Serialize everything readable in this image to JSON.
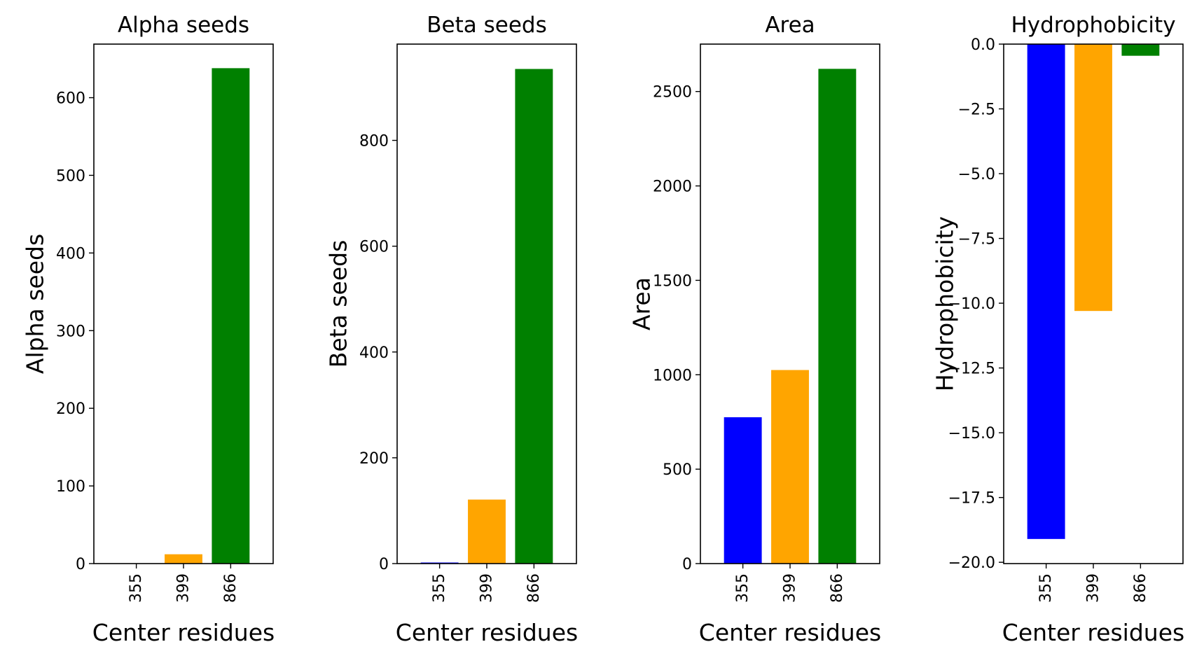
{
  "chart_data": [
    {
      "type": "bar",
      "title": "Alpha seeds",
      "xlabel": "Center residues",
      "ylabel": "Alpha seeds",
      "categories": [
        "355",
        "399",
        "866"
      ],
      "values": [
        0,
        12,
        638
      ],
      "colors": [
        "#0000ff",
        "#ffa500",
        "#008000"
      ],
      "ylim": [
        0,
        669
      ],
      "yticks": [
        0,
        100,
        200,
        300,
        400,
        500,
        600
      ],
      "ytick_labels": [
        "0",
        "100",
        "200",
        "300",
        "400",
        "500",
        "600"
      ],
      "grid": false
    },
    {
      "type": "bar",
      "title": "Beta seeds",
      "xlabel": "Center residues",
      "ylabel": "Beta seeds",
      "categories": [
        "355",
        "399",
        "866"
      ],
      "values": [
        2,
        121,
        935
      ],
      "colors": [
        "#0000ff",
        "#ffa500",
        "#008000"
      ],
      "ylim": [
        0,
        982
      ],
      "yticks": [
        0,
        200,
        400,
        600,
        800
      ],
      "ytick_labels": [
        "0",
        "200",
        "400",
        "600",
        "800"
      ],
      "grid": false
    },
    {
      "type": "bar",
      "title": "Area",
      "xlabel": "Center residues",
      "ylabel": "Area",
      "categories": [
        "355",
        "399",
        "866"
      ],
      "values": [
        775,
        1025,
        2620
      ],
      "colors": [
        "#0000ff",
        "#ffa500",
        "#008000"
      ],
      "ylim": [
        0,
        2751
      ],
      "yticks": [
        0,
        500,
        1000,
        1500,
        2000,
        2500
      ],
      "ytick_labels": [
        "0",
        "500",
        "1000",
        "1500",
        "2000",
        "2500"
      ],
      "grid": false
    },
    {
      "type": "bar",
      "title": "Hydrophobicity",
      "xlabel": "Center residues",
      "ylabel": "Hydrophobicity",
      "categories": [
        "355",
        "399",
        "866"
      ],
      "values": [
        -19.1,
        -10.3,
        -0.45
      ],
      "colors": [
        "#0000ff",
        "#ffa500",
        "#008000"
      ],
      "ylim": [
        -20.05,
        0
      ],
      "yticks": [
        0,
        -2.5,
        -5,
        -7.5,
        -10,
        -12.5,
        -15,
        -17.5,
        -20
      ],
      "ytick_labels": [
        "0.0",
        "−2.5",
        "−5.0",
        "−7.5",
        "−10.0",
        "−12.5",
        "−15.0",
        "−17.5",
        "−20.0"
      ],
      "grid": false
    }
  ]
}
